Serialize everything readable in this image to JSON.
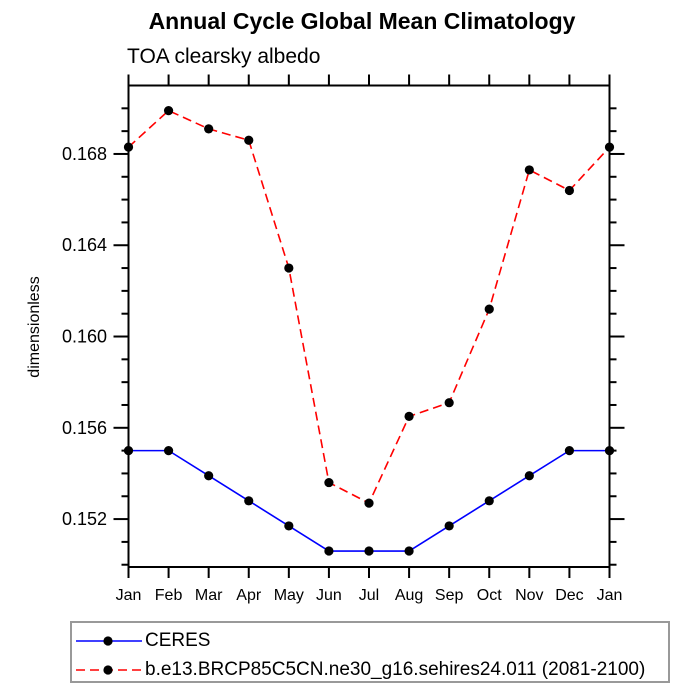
{
  "title": "Annual Cycle Global Mean Climatology",
  "subtitle": "TOA clearsky albedo",
  "ylabel": "dimensionless",
  "colors": {
    "ceres_line": "#0000ff",
    "model_line": "#ff0000",
    "marker": "#000000",
    "text": "#000000",
    "legend_border": "#999999"
  },
  "chart_data": {
    "type": "line",
    "x_categories": [
      "Jan",
      "Feb",
      "Mar",
      "Apr",
      "May",
      "Jun",
      "Jul",
      "Aug",
      "Sep",
      "Oct",
      "Nov",
      "Dec",
      "Jan"
    ],
    "series": [
      {
        "name": "CERES",
        "color": "#0000ff",
        "line_style": "solid",
        "marker": "filled-circle",
        "marker_color": "#000000",
        "values": [
          0.155,
          0.155,
          0.1539,
          0.1528,
          0.1517,
          0.1506,
          0.1506,
          0.1506,
          0.1517,
          0.1528,
          0.1539,
          0.155,
          0.155
        ]
      },
      {
        "name": "b.e13.BRCP85C5CN.ne30_g16.sehires24.011 (2081-2100)",
        "color": "#ff0000",
        "line_style": "dashed",
        "marker": "filled-circle",
        "marker_color": "#000000",
        "values": [
          0.1683,
          0.1699,
          0.1691,
          0.1686,
          0.163,
          0.1536,
          0.1527,
          0.1565,
          0.1571,
          0.1612,
          0.1673,
          0.1664,
          0.1683
        ]
      }
    ],
    "xlabel": "",
    "ylim": [
      0.1499,
      0.171
    ],
    "yticks_major": [
      0.152,
      0.156,
      0.16,
      0.164,
      0.168
    ],
    "ytick_labels": [
      "0.152",
      "0.156",
      "0.160",
      "0.164",
      "0.168"
    ],
    "ytick_minor_step": 0.001,
    "grid": false,
    "legend_position": "bottom-left-box"
  }
}
